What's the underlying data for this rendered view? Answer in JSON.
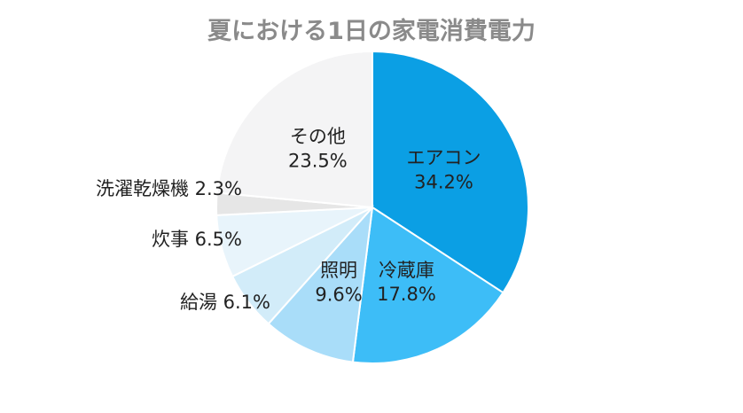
{
  "chart_data": {
    "type": "pie",
    "title": "夏における1日の家電消費電力",
    "slices": [
      {
        "label": "エアコン",
        "value": 34.2,
        "value_text": "34.2%",
        "color": "#0b9fe4",
        "label_position": "inside"
      },
      {
        "label": "冷蔵庫",
        "value": 17.8,
        "value_text": "17.8%",
        "color": "#3dbdf7",
        "label_position": "inside"
      },
      {
        "label": "照明",
        "value": 9.6,
        "value_text": "9.6%",
        "color": "#a9ddf9",
        "label_position": "inside"
      },
      {
        "label": "給湯",
        "value": 6.1,
        "value_text": "6.1%",
        "color": "#d2ecf9",
        "label_position": "outside"
      },
      {
        "label": "炊事",
        "value": 6.5,
        "value_text": "6.5%",
        "color": "#e8f4fb",
        "label_position": "outside"
      },
      {
        "label": "洗濯乾燥機",
        "value": 2.3,
        "value_text": "2.3%",
        "color": "#e6e6e6",
        "label_position": "outside"
      },
      {
        "label": "その他",
        "value": 23.5,
        "value_text": "23.5%",
        "color": "#f4f4f5",
        "label_position": "inside"
      }
    ],
    "start_angle_deg": 0,
    "direction": "clockwise",
    "legend": "none"
  }
}
